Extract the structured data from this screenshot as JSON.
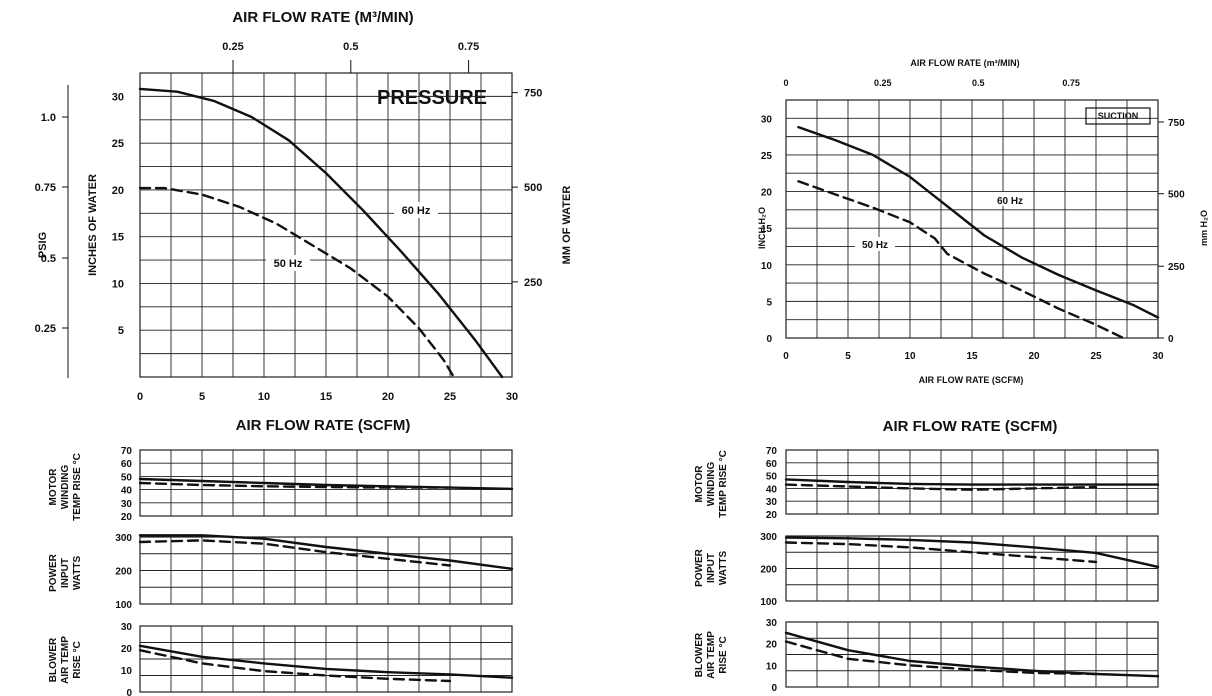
{
  "left": {
    "top_axis_title": "AIR FLOW RATE (M³/MIN)",
    "m3_ticks": [
      "0.25",
      "0.5",
      "0.75"
    ],
    "corner_label": "PRESSURE",
    "psig_label": "PSIG",
    "psig_ticks": [
      "1.0",
      "0.75",
      "0.5",
      "0.25"
    ],
    "inches_label": "INCHES OF WATER",
    "mm_label": "MM OF WATER",
    "bottom_axis_title": "AIR FLOW RATE (SCFM)",
    "small_labels": {
      "motor": [
        "MOTOR",
        "WINDING",
        "TEMP RISE °C"
      ],
      "power": [
        "POWER",
        "INPUT",
        "WATTS"
      ],
      "blower": [
        "BLOWER",
        "AIR TEMP",
        "RISE °C"
      ]
    }
  },
  "right": {
    "top_axis_title": "AIR FLOW RATE (m³/MIN)",
    "m3_ticks": [
      "0",
      "0.25",
      "0.5",
      "0.75"
    ],
    "corner_label": "SUCTION",
    "left_label": "INCH H₂O",
    "right_label": "mm H₂O",
    "bottom_axis_title": "AIR FLOW RATE (SCFM)",
    "section_title": "AIR FLOW RATE (SCFM)",
    "small_labels": {
      "motor": [
        "MOTOR",
        "WINDING",
        "TEMP RISE °C"
      ],
      "power": [
        "POWER",
        "INPUT",
        "WATTS"
      ],
      "blower": [
        "BLOWER",
        "AIR TEMP",
        "RISE °C"
      ]
    }
  },
  "colors": {
    "line": "#111111",
    "grid": "#222222"
  },
  "chart_data": [
    {
      "id": "pressure-main",
      "type": "line",
      "title": "PRESSURE",
      "xlabel": "AIR FLOW RATE (SCFM)",
      "ylabel": "INCHES OF WATER",
      "x_ticks": [
        "0",
        "5",
        "10",
        "15",
        "20",
        "25",
        "30"
      ],
      "y_ticks": [
        "5",
        "10",
        "15",
        "20",
        "25",
        "30"
      ],
      "right_ticks": [
        "250",
        "500",
        "750"
      ],
      "xlim": [
        0,
        30
      ],
      "ylim": [
        0,
        32.5
      ],
      "grid": true,
      "series": [
        {
          "name": "60 Hz",
          "style": "solid",
          "x": [
            0,
            3,
            6,
            9,
            12,
            15,
            18,
            21,
            24,
            27,
            29.2
          ],
          "y": [
            30.8,
            30.5,
            29.5,
            27.8,
            25.3,
            21.8,
            17.8,
            13.5,
            9,
            4,
            0
          ]
        },
        {
          "name": "50 Hz",
          "style": "dashed",
          "x": [
            0,
            2,
            5,
            8,
            11,
            14,
            17,
            20,
            22.5,
            24.5,
            25.3
          ],
          "y": [
            20.2,
            20.2,
            19.5,
            18.2,
            16.4,
            14,
            11.6,
            8.6,
            5.2,
            1.8,
            0
          ]
        }
      ]
    },
    {
      "id": "pressure-motor",
      "type": "line",
      "xlim": [
        0,
        30
      ],
      "ylim": [
        20,
        70
      ],
      "y_ticks": [
        "70",
        "60",
        "50",
        "40",
        "30",
        "20"
      ],
      "series": [
        {
          "name": "60 Hz",
          "style": "solid",
          "x": [
            0,
            5,
            10,
            15,
            20,
            25,
            30
          ],
          "y": [
            48,
            46.5,
            45,
            43.5,
            42.5,
            41.5,
            40.5
          ]
        },
        {
          "name": "50 Hz",
          "style": "dashed",
          "x": [
            0,
            5,
            10,
            15,
            20,
            25
          ],
          "y": [
            45,
            43.5,
            42.5,
            42,
            41.5,
            41.5
          ]
        }
      ]
    },
    {
      "id": "pressure-power",
      "type": "line",
      "xlim": [
        0,
        30
      ],
      "ylim": [
        100,
        300
      ],
      "y_ticks": [
        "300",
        "200",
        "100"
      ],
      "series": [
        {
          "name": "60 Hz",
          "style": "solid",
          "x": [
            0,
            5,
            10,
            15,
            20,
            25,
            30
          ],
          "y": [
            305,
            305,
            295,
            270,
            250,
            230,
            205
          ]
        },
        {
          "name": "50 Hz",
          "style": "dashed",
          "x": [
            0,
            5,
            10,
            15,
            20,
            25
          ],
          "y": [
            285,
            290,
            280,
            255,
            235,
            215
          ]
        }
      ]
    },
    {
      "id": "pressure-blower",
      "type": "line",
      "xlim": [
        0,
        30
      ],
      "ylim": [
        0,
        30
      ],
      "y_ticks": [
        "30",
        "20",
        "10",
        "0"
      ],
      "series": [
        {
          "name": "60 Hz",
          "style": "solid",
          "x": [
            0,
            5,
            10,
            15,
            20,
            25,
            30
          ],
          "y": [
            21,
            16,
            13,
            10.5,
            9,
            8,
            6.5
          ]
        },
        {
          "name": "50 Hz",
          "style": "dashed",
          "x": [
            0,
            5,
            10,
            15,
            20,
            25
          ],
          "y": [
            19,
            13,
            9.5,
            7.5,
            6,
            5
          ]
        }
      ]
    },
    {
      "id": "suction-main",
      "type": "line",
      "title": "SUCTION",
      "xlabel": "AIR FLOW RATE (SCFM)",
      "ylabel": "INCH H₂O",
      "x_ticks": [
        "0",
        "5",
        "10",
        "15",
        "20",
        "25",
        "30"
      ],
      "y_ticks": [
        "0",
        "5",
        "10",
        "15",
        "20",
        "25",
        "30"
      ],
      "right_ticks": [
        "0",
        "250",
        "500",
        "750"
      ],
      "xlim": [
        0,
        30
      ],
      "ylim": [
        0,
        32.5
      ],
      "grid": true,
      "series": [
        {
          "name": "60 Hz",
          "style": "solid",
          "x": [
            1,
            4,
            7,
            10,
            13,
            16,
            19,
            22,
            25,
            28,
            30
          ],
          "y": [
            28.8,
            27,
            25,
            22,
            18,
            14,
            11,
            8.6,
            6.5,
            4.5,
            2.8
          ]
        },
        {
          "name": "50 Hz",
          "style": "dashed",
          "x": [
            1,
            4,
            7,
            10,
            12,
            13,
            16,
            19,
            22,
            25,
            27.2
          ],
          "y": [
            21.4,
            19.6,
            17.8,
            15.8,
            13.6,
            11.5,
            8.8,
            6.5,
            4,
            1.8,
            0
          ]
        }
      ]
    },
    {
      "id": "suction-motor",
      "type": "line",
      "xlim": [
        0,
        30
      ],
      "ylim": [
        20,
        70
      ],
      "y_ticks": [
        "70",
        "60",
        "50",
        "40",
        "30",
        "20"
      ],
      "series": [
        {
          "name": "60 Hz",
          "style": "solid",
          "x": [
            0,
            5,
            10,
            15,
            20,
            25,
            30
          ],
          "y": [
            47,
            45,
            43.5,
            43,
            43,
            43,
            43
          ]
        },
        {
          "name": "50 Hz",
          "style": "dashed",
          "x": [
            0,
            5,
            10,
            15,
            20,
            25
          ],
          "y": [
            43,
            41.5,
            40,
            39,
            40,
            41
          ]
        }
      ]
    },
    {
      "id": "suction-power",
      "type": "line",
      "xlim": [
        0,
        30
      ],
      "ylim": [
        100,
        300
      ],
      "y_ticks": [
        "300",
        "200",
        "100"
      ],
      "series": [
        {
          "name": "60 Hz",
          "style": "solid",
          "x": [
            0,
            5,
            10,
            15,
            20,
            25,
            30
          ],
          "y": [
            295,
            293,
            288,
            280,
            265,
            248,
            205
          ]
        },
        {
          "name": "50 Hz",
          "style": "dashed",
          "x": [
            0,
            5,
            10,
            15,
            20,
            25
          ],
          "y": [
            280,
            275,
            265,
            250,
            235,
            220
          ]
        }
      ]
    },
    {
      "id": "suction-blower",
      "type": "line",
      "xlim": [
        0,
        30
      ],
      "ylim": [
        0,
        30
      ],
      "y_ticks": [
        "30",
        "20",
        "10",
        "0"
      ],
      "series": [
        {
          "name": "60 Hz",
          "style": "solid",
          "x": [
            0,
            5,
            10,
            15,
            20,
            25,
            30
          ],
          "y": [
            25,
            17,
            12,
            9.5,
            7.5,
            6,
            5
          ]
        },
        {
          "name": "50 Hz",
          "style": "dashed",
          "x": [
            0,
            5,
            10,
            15,
            20,
            25
          ],
          "y": [
            21,
            13,
            10,
            8,
            6.5,
            6
          ]
        }
      ]
    }
  ]
}
